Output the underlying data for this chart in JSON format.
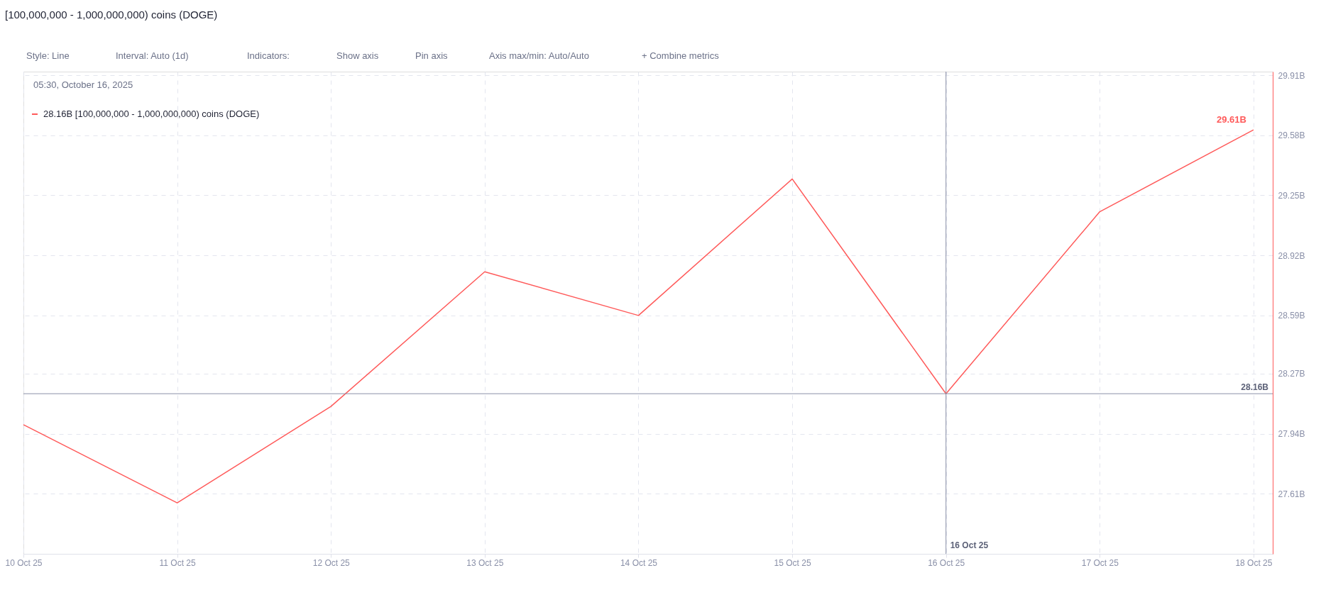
{
  "chart_data": {
    "type": "line",
    "title": "[100,000,000 - 1,000,000,000) coins (DOGE)",
    "x": [
      "2025-10-10",
      "2025-10-11",
      "2025-10-12",
      "2025-10-13",
      "2025-10-14",
      "2025-10-15",
      "2025-10-16",
      "2025-10-17",
      "2025-10-18"
    ],
    "values": [
      27.99,
      27.56,
      28.09,
      28.83,
      28.59,
      29.34,
      28.16,
      29.16,
      29.61
    ],
    "value_labels": [
      null,
      null,
      null,
      null,
      null,
      null,
      null,
      null,
      "29.61B"
    ],
    "color": "#ff5a5a",
    "line_style": "solid",
    "marker": "none",
    "grid": true,
    "xlim": [
      "2025-10-10",
      "2025-10-18T03:00"
    ],
    "xticks": [
      {
        "value": "2025-10-10",
        "label": "10 Oct 25"
      },
      {
        "value": "2025-10-11",
        "label": "11 Oct 25"
      },
      {
        "value": "2025-10-12",
        "label": "12 Oct 25"
      },
      {
        "value": "2025-10-13",
        "label": "13 Oct 25"
      },
      {
        "value": "2025-10-14",
        "label": "14 Oct 25"
      },
      {
        "value": "2025-10-15",
        "label": "15 Oct 25"
      },
      {
        "value": "2025-10-16",
        "label": "16 Oct 25"
      },
      {
        "value": "2025-10-17",
        "label": "17 Oct 25"
      },
      {
        "value": "2025-10-18",
        "label": "18 Oct 25"
      }
    ],
    "ylim": [
      27.28,
      29.93
    ],
    "yticks": [
      {
        "value": 27.61,
        "label": "27.61B"
      },
      {
        "value": 27.94,
        "label": "27.94B"
      },
      {
        "value": 28.27,
        "label": "28.27B"
      },
      {
        "value": 28.59,
        "label": "28.59B"
      },
      {
        "value": 28.92,
        "label": "28.92B"
      },
      {
        "value": 29.25,
        "label": "29.25B"
      },
      {
        "value": 29.58,
        "label": "29.58B"
      },
      {
        "value": 29.91,
        "label": "29.91B"
      }
    ],
    "ref_lines": [
      {
        "axis": "x",
        "value": "2025-10-16",
        "label": "16 Oct 25",
        "color": "#8a90a8"
      },
      {
        "axis": "y",
        "value": 28.16,
        "label": "28.16B",
        "color": "#8a90a8"
      }
    ],
    "annotations": [
      "Style: Line",
      "Interval: Auto (1d)",
      "Indicators:",
      "Show axis",
      "Pin axis",
      "Axis max/min: Auto/Auto",
      "+ Combine metrics",
      "05:30, October 16, 2025",
      "28.16B [100,000,000 - 1,000,000,000) coins (DOGE)"
    ]
  }
}
